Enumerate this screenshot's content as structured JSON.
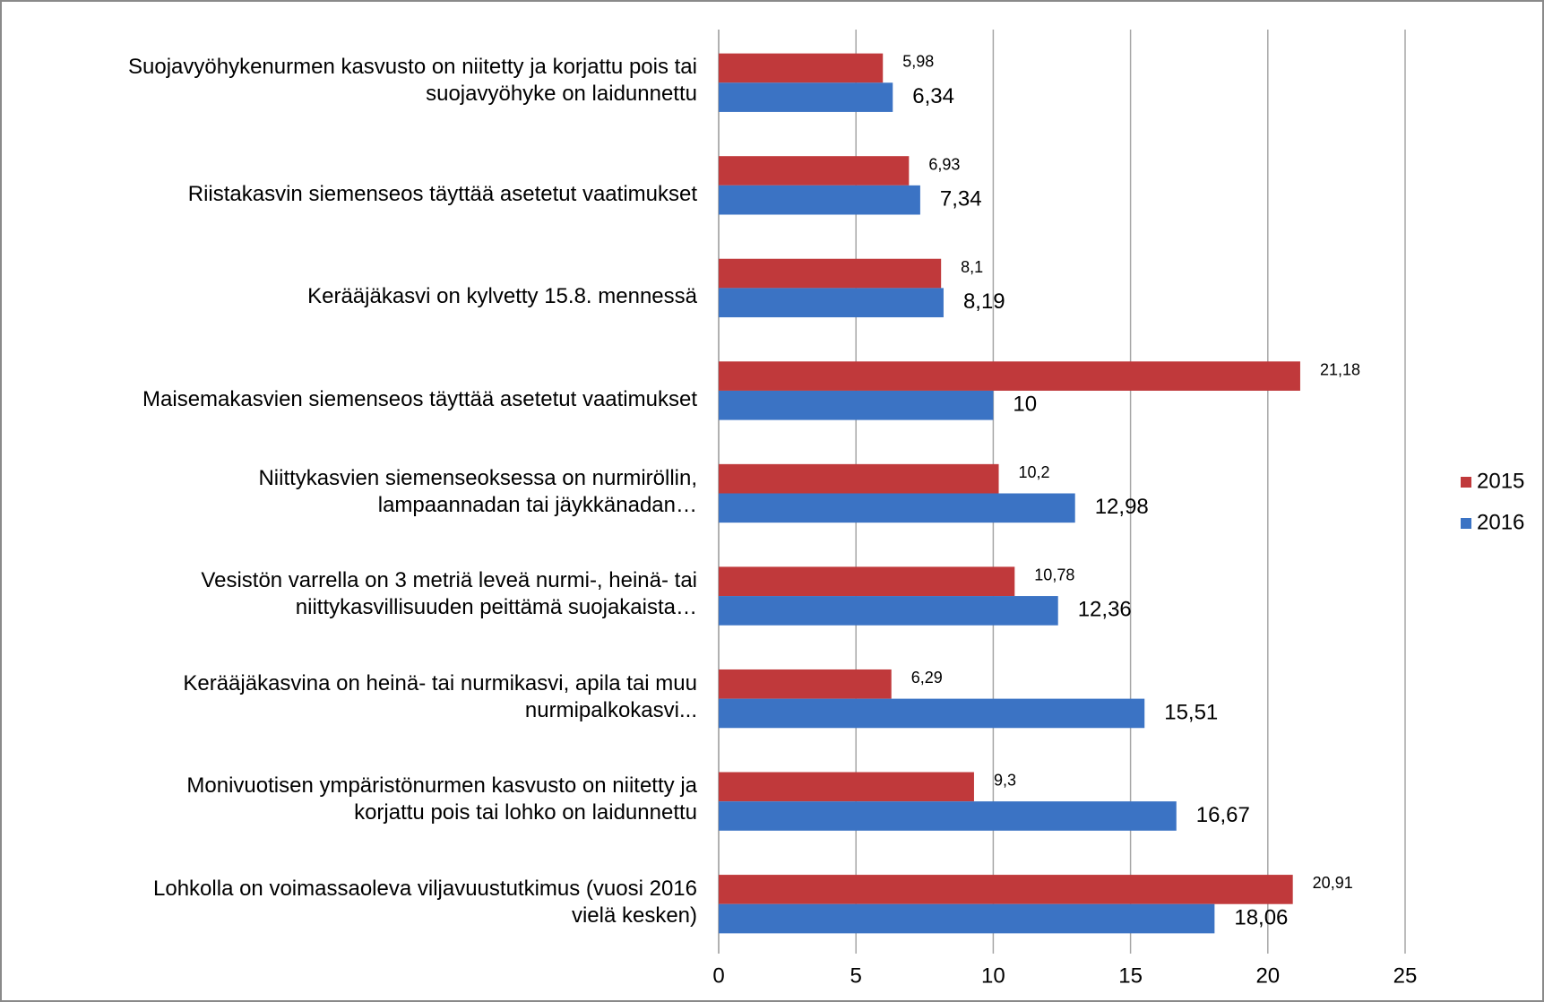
{
  "chart_data": {
    "type": "bar",
    "orientation": "horizontal",
    "categories": [
      "Suojavyöhykenurmen kasvusto on niitetty ja korjattu pois tai\nsuojavyöhyke on laidunnettu",
      "Riistakasvin siemenseos täyttää asetetut vaatimukset",
      "Kerääjäkasvi on kylvetty 15.8. mennessä",
      "Maisemakasvien  siemenseos täyttää asetetut vaatimukset",
      "Niittykasvien siemenseoksessa on nurmiröllin,\nlampaannadan  tai jäykkänadan…",
      "Vesistön varrella on 3 metriä leveä nurmi-, heinä- tai\nniittykasvillisuuden peittämä suojakaista…",
      "Kerääjäkasvina on heinä- tai nurmikasvi,  apila tai muu\nnurmipalkokasvi...",
      "Monivuotisen ympäristönurmen kasvusto on niitetty ja\nkorjattu pois tai lohko on laidunnettu",
      "Lohkolla on voimassaoleva viljavuustutkimus (vuosi 2016\nvielä kesken)"
    ],
    "series": [
      {
        "name": "2015",
        "color": "#c0393b",
        "values": [
          5.98,
          6.93,
          8.1,
          21.18,
          10.2,
          10.78,
          6.29,
          9.3,
          20.91
        ],
        "value_labels": [
          "5,98",
          "6,93",
          "8,1",
          "21,18",
          "10,2",
          "10,78",
          "6,29",
          "9,3",
          "20,91"
        ]
      },
      {
        "name": "2016",
        "color": "#3b73c4",
        "values": [
          6.34,
          7.34,
          8.19,
          10,
          12.98,
          12.36,
          15.51,
          16.67,
          18.06
        ],
        "value_labels": [
          "6,34",
          "7,34",
          "8,19",
          "10",
          "12,98",
          "12,36",
          "15,51",
          "16,67",
          "18,06"
        ]
      }
    ],
    "xlim": [
      0,
      25
    ],
    "xticks": [
      0,
      5,
      10,
      15,
      20,
      25
    ],
    "grid": true,
    "legend": "right"
  }
}
